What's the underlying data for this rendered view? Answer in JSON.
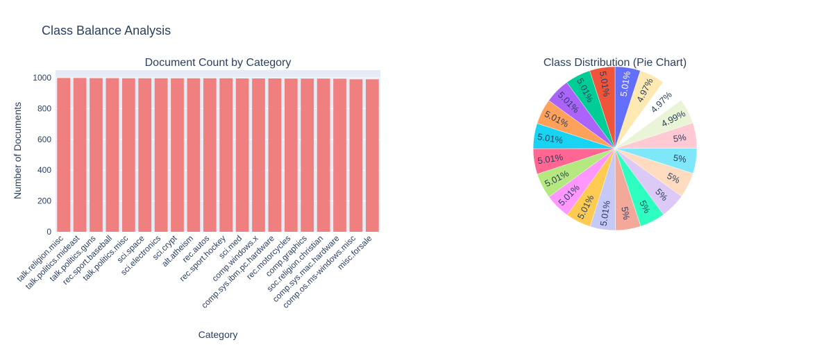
{
  "figure": {
    "title": "Class Balance Analysis"
  },
  "chart_data": [
    {
      "type": "bar",
      "title": "Document Count by Category",
      "xlabel": "Category",
      "ylabel": "Number of Documents",
      "ylim": [
        0,
        1050
      ],
      "yticks": [
        0,
        200,
        400,
        600,
        800,
        1000
      ],
      "grid": true,
      "color": "#f08080",
      "categories": [
        "talk.religion.misc",
        "talk.politics.mideast",
        "talk.politics.guns",
        "rec.sport.baseball",
        "talk.politics.misc",
        "sci.space",
        "sci.electronics",
        "sci.crypt",
        "alt.atheism",
        "rec.autos",
        "rec.sport.hockey",
        "sci.med",
        "comp.windows.x",
        "comp.sys.ibm.pc.hardware",
        "rec.motorcycles",
        "comp.graphics",
        "soc.religion.christian",
        "comp.sys.mac.hardware",
        "comp.os.ms-windows.misc",
        "misc.forsale"
      ],
      "values": [
        999,
        999,
        998,
        998,
        997,
        997,
        997,
        997,
        997,
        997,
        997,
        996,
        996,
        996,
        995,
        995,
        995,
        994,
        990,
        990
      ]
    },
    {
      "type": "pie",
      "title": "Class Distribution (Pie Chart)",
      "slices": [
        {
          "label": "5.01%",
          "value": 5.01,
          "color": "#636efa"
        },
        {
          "label": "4.97%",
          "value": 4.97,
          "color": "#ffe9b3"
        },
        {
          "label": "4.97%",
          "value": 4.97,
          "color": "#ffffff"
        },
        {
          "label": "4.99%",
          "value": 4.99,
          "color": "#e9f5d6"
        },
        {
          "label": "5%",
          "value": 5.0,
          "color": "#ffcad4"
        },
        {
          "label": "5%",
          "value": 5.0,
          "color": "#7ee8fa"
        },
        {
          "label": "5%",
          "value": 5.0,
          "color": "#ffdcc0"
        },
        {
          "label": "5%",
          "value": 5.0,
          "color": "#dcc9f5"
        },
        {
          "label": "5%",
          "value": 5.0,
          "color": "#2effc0"
        },
        {
          "label": "5%",
          "value": 5.0,
          "color": "#f4a89a"
        },
        {
          "label": "5.01%",
          "value": 5.01,
          "color": "#c6c9f5"
        },
        {
          "label": "5.01%",
          "value": 5.01,
          "color": "#fecb52"
        },
        {
          "label": "5.01%",
          "value": 5.01,
          "color": "#ff97ff"
        },
        {
          "label": "5.01%",
          "value": 5.01,
          "color": "#b6e880"
        },
        {
          "label": "5.01%",
          "value": 5.01,
          "color": "#ff6692"
        },
        {
          "label": "5.01%",
          "value": 5.01,
          "color": "#19d3f3"
        },
        {
          "label": "5.01%",
          "value": 5.01,
          "color": "#ffa15a"
        },
        {
          "label": "5.01%",
          "value": 5.01,
          "color": "#ab63fa"
        },
        {
          "label": "5.01%",
          "value": 5.01,
          "color": "#00cc96"
        },
        {
          "label": "5.01%",
          "value": 5.01,
          "color": "#ef553b"
        }
      ]
    }
  ]
}
